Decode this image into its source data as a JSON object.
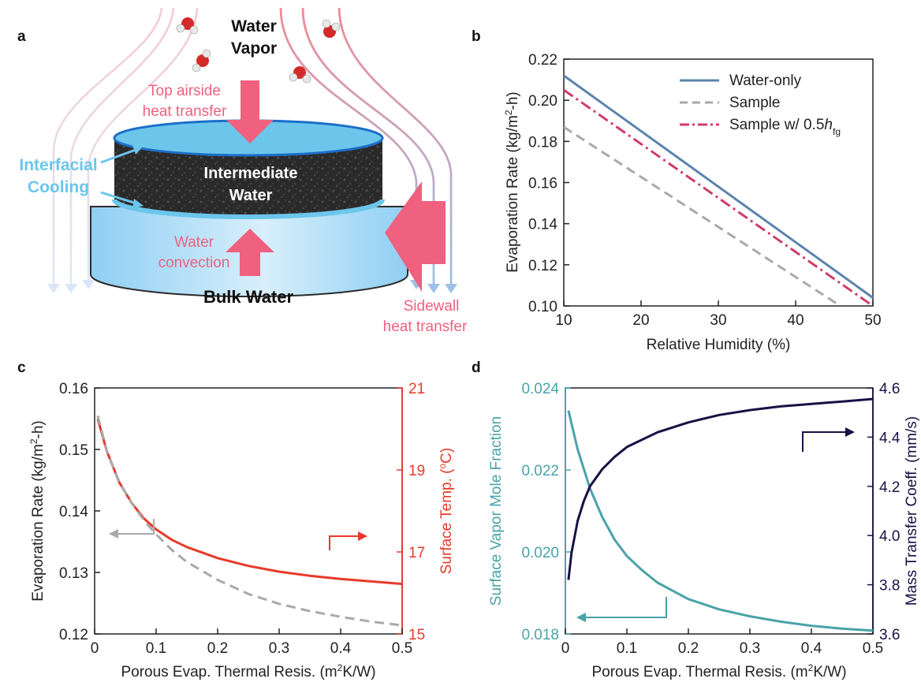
{
  "panel_a": {
    "panel_letter": "a",
    "water_vapor": [
      "Water",
      "Vapor"
    ],
    "top_airside": [
      "Top airside",
      "heat transfer"
    ],
    "interfacial_cooling": [
      "Interfacial",
      "Cooling"
    ],
    "intermediate_water": [
      "Intermediate",
      "Water"
    ],
    "water_convection": [
      "Water",
      "convection"
    ],
    "bulk_water": "Bulk Water",
    "sidewall": [
      "Sidewall",
      "heat transfer"
    ]
  },
  "colors": {
    "water_only": "#5b84ad",
    "sample": "#a9a9a9",
    "sample_half": "#d03c6a",
    "surface_temp": "#e8392a",
    "vapor_fraction": "#4aa3a8",
    "mass_transfer": "#1a1045",
    "label_pink": "#f0607f",
    "label_blue": "#6cc6ec"
  },
  "chart_data": [
    {
      "panel": "b",
      "type": "line",
      "xlabel": "Relative Humidity (%)",
      "ylabel_parts": [
        "Evaporation Rate (kg/m",
        "2",
        "-h)"
      ],
      "xlim": [
        10,
        50
      ],
      "ylim": [
        0.1,
        0.22
      ],
      "xticks": [
        "10",
        "20",
        "30",
        "40",
        "50"
      ],
      "yticks": [
        "0.10",
        "0.12",
        "0.14",
        "0.16",
        "0.18",
        "0.20",
        "0.22"
      ],
      "legend_position": "top-right",
      "legend": [
        {
          "name": "Water-only",
          "style": "solid"
        },
        {
          "name": "Sample",
          "style": "dashed"
        },
        {
          "name_parts": [
            "Sample w/ 0.5",
            "h",
            "fg"
          ],
          "style": "dashdot"
        }
      ],
      "series": [
        {
          "key": "water_only",
          "x": [
            10,
            50
          ],
          "y": [
            0.212,
            0.104
          ]
        },
        {
          "key": "sample",
          "x": [
            10,
            45.8
          ],
          "y": [
            0.187,
            0.1
          ]
        },
        {
          "key": "sample_half",
          "x": [
            10,
            50
          ],
          "y": [
            0.205,
            0.1
          ]
        }
      ]
    },
    {
      "panel": "c",
      "type": "line",
      "xlabel": "Porous Evap. Thermal Resis. (m²K/W)",
      "ylabel_left_parts": [
        "Evaporation Rate (kg/m",
        "2",
        "-h)"
      ],
      "ylabel_right_parts": [
        "Surface Temp. (",
        "o",
        "C)"
      ],
      "xlim": [
        0,
        0.5
      ],
      "ylim_left": [
        0.12,
        0.16
      ],
      "ylim_right": [
        15,
        21
      ],
      "xticks": [
        "0",
        "0.1",
        "0.2",
        "0.3",
        "0.4",
        "0.5"
      ],
      "yticks_left": [
        "0.12",
        "0.13",
        "0.14",
        "0.15",
        "0.16"
      ],
      "yticks_right": [
        "15",
        "17",
        "19",
        "21"
      ],
      "series": [
        {
          "key": "surface_temp",
          "axis": "right",
          "x": [
            0.005,
            0.02,
            0.04,
            0.06,
            0.08,
            0.1,
            0.125,
            0.15,
            0.2,
            0.25,
            0.3,
            0.35,
            0.4,
            0.45,
            0.5
          ],
          "y": [
            20.25,
            19.45,
            18.7,
            18.2,
            17.82,
            17.55,
            17.3,
            17.12,
            16.85,
            16.66,
            16.52,
            16.42,
            16.34,
            16.28,
            16.22
          ]
        },
        {
          "key": "sample",
          "axis": "left",
          "x": [
            0.005,
            0.02,
            0.04,
            0.06,
            0.08,
            0.1,
            0.125,
            0.15,
            0.2,
            0.25,
            0.3,
            0.35,
            0.4,
            0.45,
            0.5
          ],
          "y": [
            0.1555,
            0.1497,
            0.1447,
            0.1413,
            0.1385,
            0.1362,
            0.1337,
            0.1317,
            0.1288,
            0.1265,
            0.1249,
            0.1237,
            0.1228,
            0.122,
            0.1214
          ]
        }
      ]
    },
    {
      "panel": "d",
      "type": "line",
      "xlabel": "Porous Evap. Thermal Resis. (m²K/W)",
      "ylabel_left": "Surface Vapor Mole Fraction",
      "ylabel_right": "Mass Transfer Coeff. (mm/s)",
      "xlim": [
        0,
        0.5
      ],
      "ylim_left": [
        0.018,
        0.024
      ],
      "ylim_right": [
        3.6,
        4.6
      ],
      "xticks": [
        "0",
        "0.1",
        "0.2",
        "0.3",
        "0.4",
        "0.5"
      ],
      "yticks_left": [
        "0.018",
        "0.020",
        "0.022",
        "0.024"
      ],
      "yticks_right": [
        "3.6",
        "3.8",
        "4.0",
        "4.2",
        "4.4",
        "4.6"
      ],
      "series": [
        {
          "key": "vapor_fraction",
          "axis": "left",
          "x": [
            0.005,
            0.02,
            0.04,
            0.06,
            0.08,
            0.1,
            0.125,
            0.15,
            0.2,
            0.25,
            0.3,
            0.35,
            0.4,
            0.45,
            0.5
          ],
          "y": [
            0.02345,
            0.0225,
            0.02155,
            0.02085,
            0.0203,
            0.0199,
            0.01955,
            0.01925,
            0.01885,
            0.0186,
            0.01843,
            0.0183,
            0.0182,
            0.01813,
            0.01808
          ]
        },
        {
          "key": "mass_transfer",
          "axis": "right",
          "x": [
            0.005,
            0.01,
            0.02,
            0.03,
            0.04,
            0.06,
            0.08,
            0.1,
            0.125,
            0.15,
            0.2,
            0.25,
            0.3,
            0.35,
            0.4,
            0.45,
            0.5
          ],
          "y": [
            3.82,
            3.93,
            4.06,
            4.14,
            4.2,
            4.27,
            4.32,
            4.36,
            4.39,
            4.42,
            4.46,
            4.49,
            4.51,
            4.525,
            4.535,
            4.545,
            4.555
          ]
        }
      ]
    }
  ]
}
